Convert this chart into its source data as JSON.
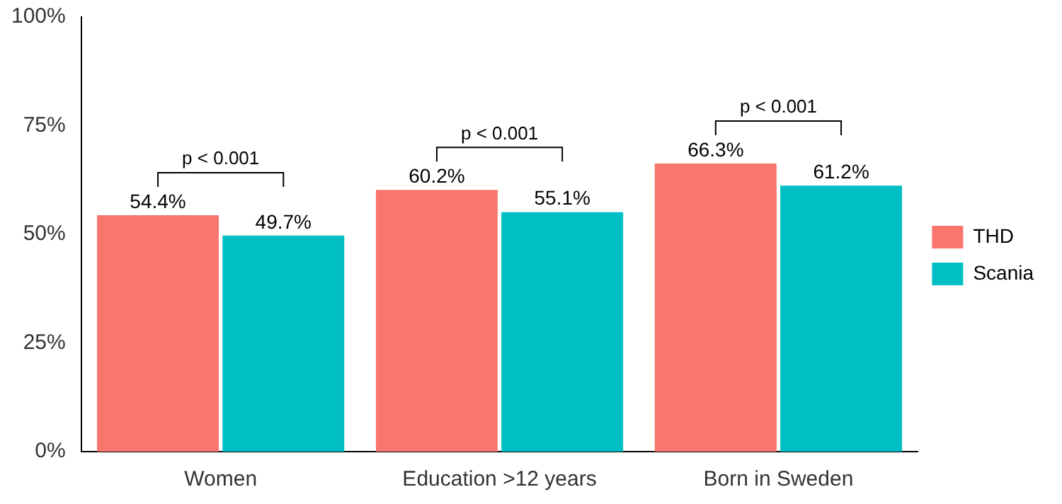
{
  "chart_data": {
    "type": "bar",
    "categories": [
      "Women",
      "Education >12 years",
      "Born in Sweden"
    ],
    "series": [
      {
        "name": "THD",
        "color": "#f8766d",
        "values": [
          54.4,
          60.2,
          66.3
        ],
        "value_labels": [
          "54.4%",
          "60.2%",
          "66.3%"
        ]
      },
      {
        "name": "Scania",
        "color": "#00bfc4",
        "values": [
          49.7,
          55.1,
          61.2
        ],
        "value_labels": [
          "49.7%",
          "55.1%",
          "61.2%"
        ]
      }
    ],
    "ylim": [
      0,
      100
    ],
    "yticks": [
      {
        "value": 0,
        "label": "0%"
      },
      {
        "value": 25,
        "label": "25%"
      },
      {
        "value": 50,
        "label": "50%"
      },
      {
        "value": 75,
        "label": "75%"
      },
      {
        "value": 100,
        "label": "100%"
      }
    ],
    "annotations": [
      "p < 0.001",
      "p < 0.001",
      "p < 0.001"
    ],
    "grid": false,
    "legend": "right"
  }
}
